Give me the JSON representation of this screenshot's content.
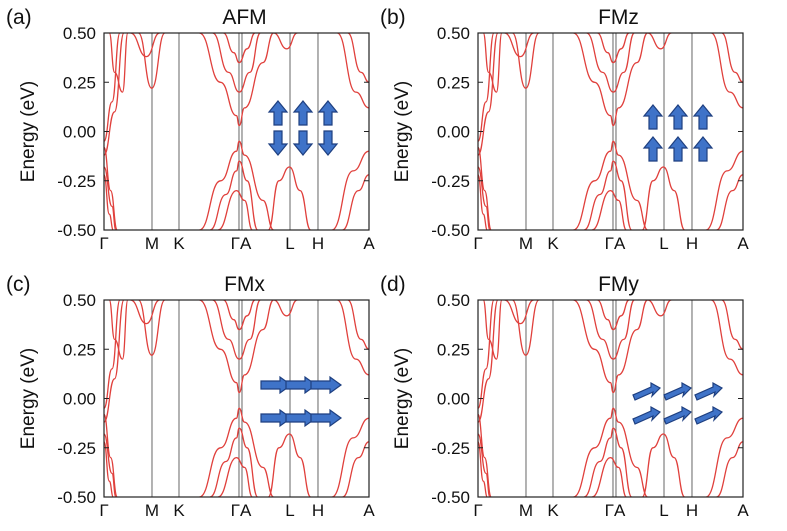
{
  "colors": {
    "band": "#e0403c",
    "axis": "#222222",
    "kline": "#555555",
    "arrow_fill": "#3f73c8",
    "arrow_edge": "#1e3f80"
  },
  "chart_data": [
    {
      "type": "line",
      "panel_label": "(a)",
      "title": "AFM",
      "ylabel": "Energy (eV)",
      "ylim": [
        -0.5,
        0.5
      ],
      "yticks": [
        "0.50",
        "0.25",
        "0.00",
        "-0.25",
        "-0.50"
      ],
      "kpath": [
        "Γ",
        "M",
        "K",
        "ΓA",
        "L",
        "H",
        "A"
      ],
      "magnetic_icon": "spin-arrows-up-down"
    },
    {
      "type": "line",
      "panel_label": "(b)",
      "title": "FMz",
      "ylabel": "Energy (eV)",
      "ylim": [
        -0.5,
        0.5
      ],
      "yticks": [
        "0.50",
        "0.25",
        "0.00",
        "-0.25",
        "-0.50"
      ],
      "kpath": [
        "Γ",
        "M",
        "K",
        "ΓA",
        "L",
        "H",
        "A"
      ],
      "magnetic_icon": "spin-arrows-up"
    },
    {
      "type": "line",
      "panel_label": "(c)",
      "title": "FMx",
      "ylabel": "Energy (eV)",
      "ylim": [
        -0.5,
        0.5
      ],
      "yticks": [
        "0.50",
        "0.25",
        "0.00",
        "-0.25",
        "-0.50"
      ],
      "kpath": [
        "Γ",
        "M",
        "K",
        "ΓA",
        "L",
        "H",
        "A"
      ],
      "magnetic_icon": "spin-arrows-right"
    },
    {
      "type": "line",
      "panel_label": "(d)",
      "title": "FMy",
      "ylabel": "Energy (eV)",
      "ylim": [
        -0.5,
        0.5
      ],
      "yticks": [
        "0.50",
        "0.25",
        "0.00",
        "-0.25",
        "-0.50"
      ],
      "kpath": [
        "Γ",
        "M",
        "K",
        "ΓA",
        "L",
        "H",
        "A"
      ],
      "magnetic_icon": "spin-arrows-in-plane-y"
    }
  ]
}
